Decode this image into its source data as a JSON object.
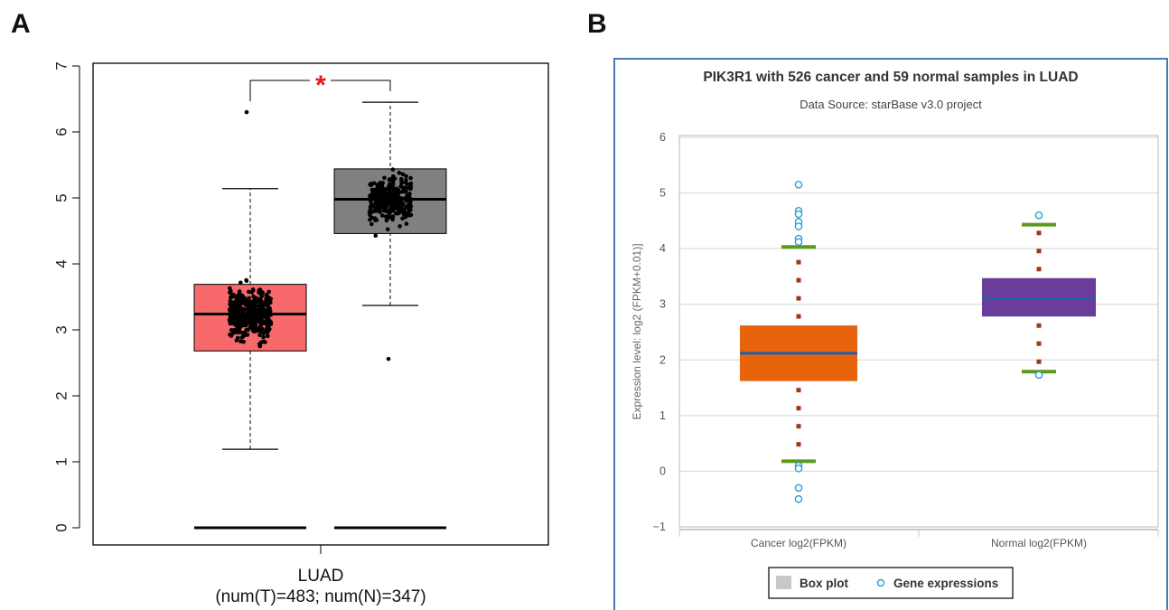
{
  "panels": {
    "a_letter": "A",
    "b_letter": "B"
  },
  "chart_data": [
    {
      "panel": "A",
      "type": "box",
      "xlabel": "LUAD",
      "xlabel_sub": "(num(T)=483; num(N)=347)",
      "ylim": [
        0,
        7
      ],
      "y_ticks": [
        "0",
        "1",
        "2",
        "3",
        "4",
        "5",
        "6",
        "7"
      ],
      "annotation": "*",
      "grid": false,
      "series": [
        {
          "role": "tumor",
          "color": "#f8696b",
          "whisker_low": 1.19,
          "q1": 2.68,
          "median": 3.24,
          "q3": 3.69,
          "whisker_high": 5.14,
          "n": 483,
          "point_min": 1.05,
          "point_max": 5.28,
          "zero_line": 0
        },
        {
          "role": "normal",
          "color": "#808080",
          "whisker_low": 3.37,
          "q1": 4.46,
          "median": 4.98,
          "q3": 5.44,
          "whisker_high": 6.45,
          "n": 347,
          "point_min": 3.35,
          "point_max": 6.46,
          "outliers": [
            2.56
          ],
          "zero_line": 0
        }
      ],
      "tumor_outliers": [
        6.3
      ]
    },
    {
      "panel": "B",
      "type": "box",
      "title": "PIK3R1 with 526 cancer and 59 normal samples in LUAD",
      "subtitle": "Data Source: starBase v3.0 project",
      "ylabel": "Expression level: log2 (FPKM+0.01)]",
      "ylim": [
        -1,
        6
      ],
      "y_ticks": [
        "6",
        "5",
        "4",
        "3",
        "2",
        "1",
        "0",
        "−1"
      ],
      "categories": [
        "Cancer log2(FPKM)",
        "Normal log2(FPKM)"
      ],
      "grid": true,
      "legend": {
        "placement": "bottom",
        "items": [
          "Box plot",
          "Gene expressions"
        ]
      },
      "series": [
        {
          "name": "Cancer log2(FPKM)",
          "color": "#e8640c",
          "whisker_color": "#5c9a1a",
          "dot_color": "#a0361a",
          "whisker_low": 0.18,
          "q1": 1.62,
          "median": 2.12,
          "q3": 2.62,
          "whisker_high": 4.03,
          "outliers": [
            5.15,
            4.68,
            4.62,
            4.48,
            4.4,
            4.18,
            4.12,
            0.1,
            0.05,
            -0.3,
            -0.5
          ]
        },
        {
          "name": "Normal log2(FPKM)",
          "color": "#6a3d9a",
          "whisker_color": "#5c9a1a",
          "dot_color": "#a0361a",
          "whisker_low": 1.79,
          "q1": 2.78,
          "median": 3.1,
          "q3": 3.47,
          "whisker_high": 4.43,
          "outliers": [
            4.6,
            1.73
          ]
        }
      ],
      "median_color": "#1f5fa8",
      "outlier_color": "#2a9fd6"
    }
  ]
}
